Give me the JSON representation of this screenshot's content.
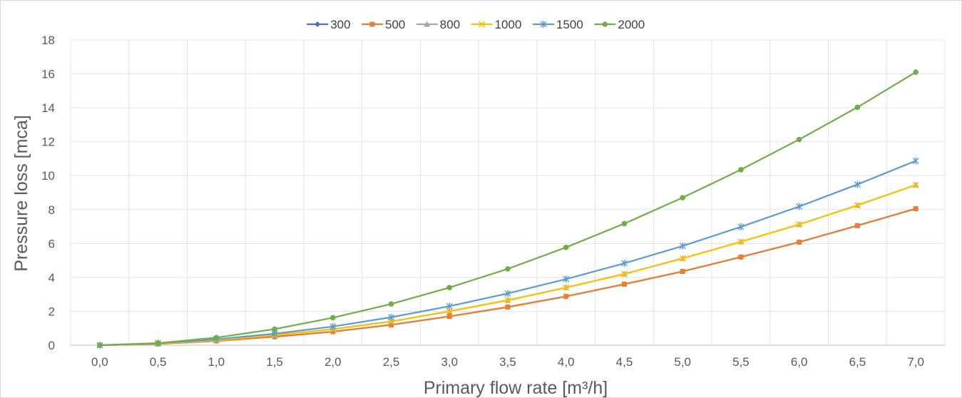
{
  "chart_data": {
    "type": "line",
    "title": "",
    "xlabel": "Primary flow rate [m³/h]",
    "ylabel": "Pressure loss [mca]",
    "x": [
      "0,0",
      "0,5",
      "1,0",
      "1,5",
      "2,0",
      "2,5",
      "3,0",
      "3,5",
      "4,0",
      "4,5",
      "5,0",
      "5,5",
      "6,0",
      "6,5",
      "7,0"
    ],
    "ylim": [
      0,
      18
    ],
    "yticks": [
      "0",
      "2",
      "4",
      "6",
      "8",
      "10",
      "12",
      "14",
      "16",
      "18"
    ],
    "grid": true,
    "legend_position": "top",
    "series": [
      {
        "name": "300",
        "color": "#4472c4",
        "marker": "diamond",
        "values": [
          0,
          0.08,
          0.25,
          0.5,
          0.8,
          1.2,
          1.7,
          2.25,
          2.88,
          3.6,
          4.35,
          5.2,
          6.08,
          7.05,
          8.05
        ]
      },
      {
        "name": "500",
        "color": "#ed7d31",
        "marker": "square",
        "values": [
          0,
          0.08,
          0.25,
          0.5,
          0.8,
          1.2,
          1.7,
          2.25,
          2.88,
          3.6,
          4.35,
          5.2,
          6.08,
          7.05,
          8.05
        ]
      },
      {
        "name": "800",
        "color": "#a5a5a5",
        "marker": "triangle",
        "values": [
          0,
          0.1,
          0.3,
          0.6,
          0.95,
          1.4,
          2.0,
          2.65,
          3.4,
          4.2,
          5.12,
          6.1,
          7.12,
          8.25,
          9.45
        ]
      },
      {
        "name": "1000",
        "color": "#ffc000",
        "marker": "x",
        "values": [
          0,
          0.1,
          0.3,
          0.6,
          0.95,
          1.4,
          2.0,
          2.65,
          3.4,
          4.2,
          5.12,
          6.1,
          7.12,
          8.25,
          9.45
        ]
      },
      {
        "name": "1500",
        "color": "#5b9bd5",
        "marker": "star",
        "values": [
          0,
          0.12,
          0.35,
          0.68,
          1.1,
          1.65,
          2.3,
          3.05,
          3.9,
          4.83,
          5.85,
          6.98,
          8.18,
          9.48,
          10.87
        ]
      },
      {
        "name": "2000",
        "color": "#70ad47",
        "marker": "circle",
        "values": [
          0,
          0.12,
          0.45,
          0.95,
          1.62,
          2.43,
          3.4,
          4.5,
          5.77,
          7.17,
          8.7,
          10.35,
          12.13,
          14.03,
          16.1
        ]
      }
    ]
  }
}
